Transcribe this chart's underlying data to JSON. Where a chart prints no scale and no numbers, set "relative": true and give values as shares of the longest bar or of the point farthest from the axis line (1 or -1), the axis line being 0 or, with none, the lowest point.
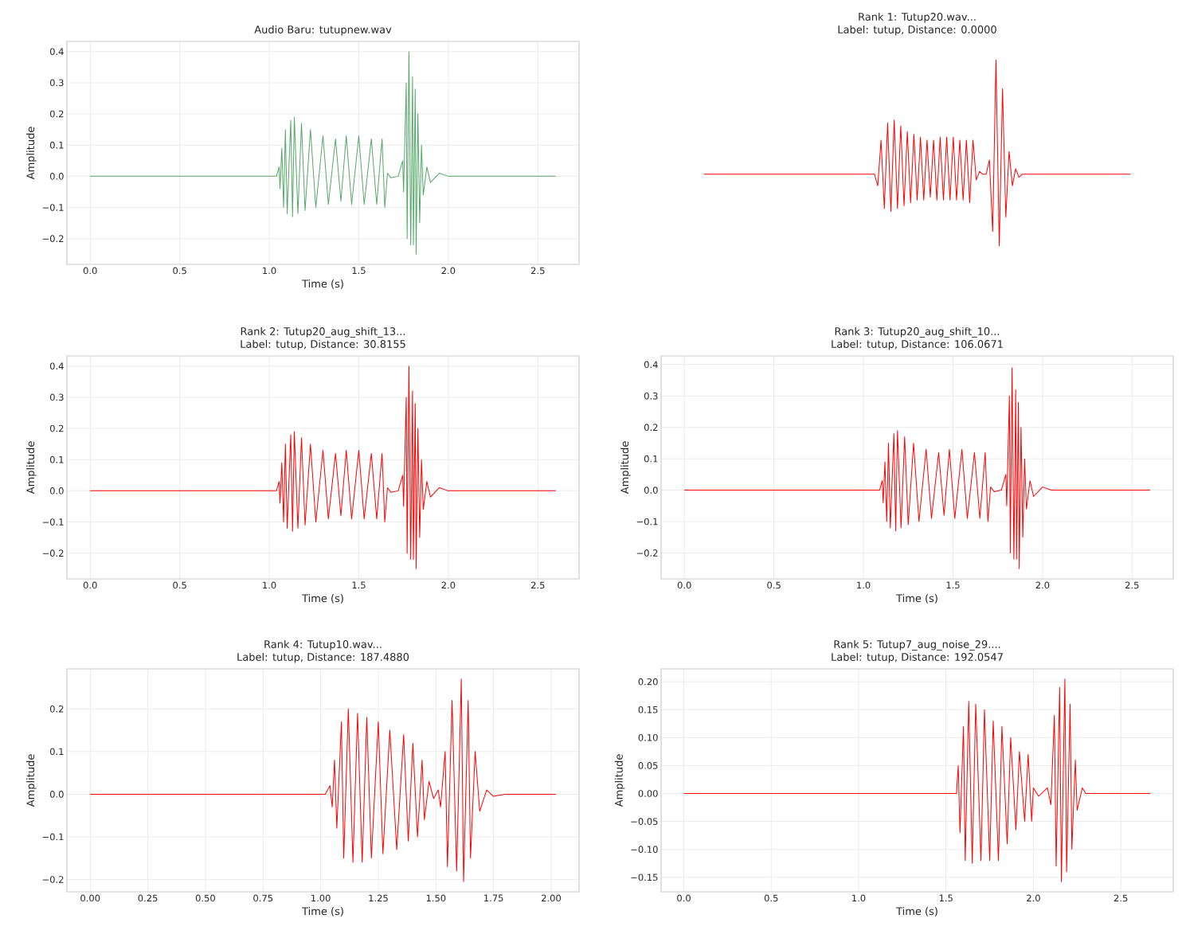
{
  "chart_data": [
    {
      "type": "line",
      "title": "Audio Baru: tutupnew.wav",
      "xlabel": "Time (s)",
      "ylabel": "Amplitude",
      "grid": true,
      "xlim": [
        -0.13,
        2.73
      ],
      "ylim": [
        -0.2825,
        0.4325
      ],
      "xticks": [
        {
          "value": 0,
          "label": "0.0"
        },
        0.5,
        {
          "value": 1,
          "label": "1.0"
        },
        1.5,
        {
          "value": 2,
          "label": "2.0"
        },
        2.5
      ],
      "yticks": [
        {
          "value": -0.2,
          "label": "−0.2"
        },
        {
          "value": -0.1,
          "label": "−0.1"
        },
        {
          "value": 0,
          "label": "0.0"
        },
        0.1,
        0.2,
        0.3,
        0.4
      ],
      "series": [
        {
          "color": "#55a868",
          "x": [
            0,
            1.04,
            1.055,
            1.06,
            1.07,
            1.08,
            1.09,
            1.1,
            1.12,
            1.13,
            1.14,
            1.16,
            1.18,
            1.2,
            1.23,
            1.26,
            1.3,
            1.33,
            1.37,
            1.4,
            1.43,
            1.46,
            1.5,
            1.53,
            1.57,
            1.6,
            1.63,
            1.645,
            1.66,
            1.68,
            1.72,
            1.745,
            1.75,
            1.765,
            1.77,
            1.78,
            1.79,
            1.8,
            1.805,
            1.815,
            1.82,
            1.83,
            1.84,
            1.85,
            1.86,
            1.88,
            1.9,
            1.95,
            2.0,
            2.6
          ],
          "values": [
            0,
            0,
            0.03,
            -0.04,
            0.09,
            -0.1,
            0.15,
            -0.12,
            0.18,
            -0.13,
            0.19,
            -0.12,
            0.17,
            -0.11,
            0.15,
            -0.1,
            0.13,
            -0.09,
            0.12,
            -0.08,
            0.13,
            -0.09,
            0.13,
            -0.09,
            0.12,
            -0.09,
            0.12,
            -0.1,
            0.01,
            -0.005,
            0,
            0.05,
            -0.05,
            0.3,
            -0.2,
            0.4,
            -0.22,
            0.32,
            -0.22,
            0.28,
            -0.25,
            0.2,
            -0.15,
            0.1,
            -0.06,
            0.03,
            -0.02,
            0.01,
            0,
            0
          ]
        }
      ]
    },
    {
      "type": "line",
      "title": "Rank 1: Tutup20.wav...",
      "subtitle": "Label: tutup, Distance: 0.0000",
      "relative": true,
      "categories": [
        null,
        null,
        null,
        null,
        null,
        null,
        null,
        null,
        null,
        null,
        null,
        null,
        null,
        null,
        null,
        null,
        null,
        null,
        null,
        null,
        null,
        null,
        null,
        null,
        null,
        null,
        null,
        null,
        null,
        null,
        null,
        null,
        null,
        null,
        null,
        null,
        null,
        null,
        null,
        null,
        null,
        null,
        null,
        null,
        null,
        null,
        null,
        null,
        null,
        null,
        null,
        null,
        null,
        null,
        null,
        null,
        null,
        null,
        null,
        null,
        null,
        null,
        null,
        null,
        null,
        null,
        null,
        null,
        null,
        null,
        null,
        null,
        null,
        null,
        null,
        null,
        null,
        null,
        null,
        null,
        null,
        null,
        null,
        null,
        null,
        null,
        null,
        null,
        null,
        null,
        null,
        null,
        null,
        null,
        null,
        null,
        null,
        null,
        null,
        null,
        null,
        null,
        null,
        null,
        null,
        null,
        null,
        null,
        null,
        null,
        null,
        null,
        null,
        null,
        null,
        null,
        null,
        null,
        null,
        null,
        null,
        null,
        null,
        null,
        null,
        null,
        null,
        null,
        null,
        null,
        null
      ],
      "series": [
        {
          "color": "#ff0000",
          "values": [
            0.385,
            0.385,
            0.385,
            0.385,
            0.385,
            0.385,
            0.385,
            0.385,
            0.385,
            0.385,
            0.385,
            0.385,
            0.385,
            0.385,
            0.385,
            0.385,
            0.385,
            0.385,
            0.385,
            0.385,
            0.385,
            0.385,
            0.385,
            0.385,
            0.385,
            0.385,
            0.385,
            0.385,
            0.385,
            0.385,
            0.385,
            0.385,
            0.385,
            0.385,
            0.385,
            0.385,
            0.385,
            0.385,
            0.385,
            0.385,
            0.385,
            0.385,
            0.385,
            0.385,
            0.385,
            0.385,
            0.385,
            0.385,
            0.385,
            0.385,
            0.385,
            0.385,
            0.385,
            0.323,
            0.569,
            0.2,
            0.662,
            0.185,
            0.677,
            0.2,
            0.646,
            0.215,
            0.615,
            0.231,
            0.6,
            0.246,
            0.585,
            0.246,
            0.569,
            0.262,
            0.569,
            0.246,
            0.585,
            0.246,
            0.585,
            0.246,
            0.585,
            0.246,
            0.569,
            0.246,
            0.569,
            0.231,
            0.569,
            0.354,
            0.4,
            0.385,
            0.385,
            0.462,
            0.077,
            1,
            0,
            0.846,
            0.154,
            0.508,
            0.323,
            0.415,
            0.369,
            0.385,
            0.385,
            0.385,
            0.385,
            0.385,
            0.385,
            0.385,
            0.385,
            0.385,
            0.385,
            0.385,
            0.385,
            0.385,
            0.385,
            0.385,
            0.385,
            0.385,
            0.385,
            0.385,
            0.385,
            0.385,
            0.385,
            0.385,
            0.385,
            0.385,
            0.385,
            0.385,
            0.385,
            0.385,
            0.385,
            0.385,
            0.385,
            0.385,
            0.385
          ]
        }
      ]
    },
    {
      "type": "line",
      "title": "Rank 2: Tutup20_aug_shift_13...",
      "subtitle": "Label: tutup, Distance: 30.8155",
      "xlabel": "Time (s)",
      "ylabel": "Amplitude",
      "grid": true,
      "xlim": [
        -0.13,
        2.73
      ],
      "ylim": [
        -0.2825,
        0.4325
      ],
      "xticks": [
        {
          "value": 0,
          "label": "0.0"
        },
        0.5,
        {
          "value": 1,
          "label": "1.0"
        },
        1.5,
        {
          "value": 2,
          "label": "2.0"
        },
        2.5
      ],
      "yticks": [
        {
          "value": -0.2,
          "label": "−0.2"
        },
        {
          "value": -0.1,
          "label": "−0.1"
        },
        {
          "value": 0,
          "label": "0.0"
        },
        0.1,
        0.2,
        0.3,
        0.4
      ],
      "series": [
        {
          "color": "#ff0000",
          "x": [
            0,
            1.04,
            1.055,
            1.06,
            1.07,
            1.08,
            1.09,
            1.1,
            1.12,
            1.13,
            1.14,
            1.16,
            1.18,
            1.2,
            1.23,
            1.26,
            1.3,
            1.33,
            1.37,
            1.4,
            1.43,
            1.46,
            1.5,
            1.53,
            1.57,
            1.6,
            1.63,
            1.645,
            1.66,
            1.68,
            1.72,
            1.745,
            1.75,
            1.765,
            1.77,
            1.78,
            1.79,
            1.8,
            1.805,
            1.815,
            1.82,
            1.83,
            1.84,
            1.85,
            1.86,
            1.88,
            1.9,
            1.95,
            2.0,
            2.6
          ],
          "values": [
            0,
            0,
            0.03,
            -0.04,
            0.09,
            -0.1,
            0.15,
            -0.12,
            0.18,
            -0.13,
            0.19,
            -0.12,
            0.17,
            -0.11,
            0.15,
            -0.1,
            0.13,
            -0.09,
            0.12,
            -0.08,
            0.13,
            -0.09,
            0.13,
            -0.09,
            0.12,
            -0.09,
            0.12,
            -0.1,
            0.01,
            -0.005,
            0,
            0.05,
            -0.05,
            0.3,
            -0.2,
            0.4,
            -0.22,
            0.32,
            -0.22,
            0.28,
            -0.25,
            0.2,
            -0.15,
            0.1,
            -0.06,
            0.03,
            -0.02,
            0.01,
            0,
            0
          ]
        }
      ]
    },
    {
      "type": "line",
      "title": "Rank 3: Tutup20_aug_shift_10...",
      "subtitle": "Label: tutup, Distance: 106.0671",
      "xlabel": "Time (s)",
      "ylabel": "Amplitude",
      "grid": true,
      "xlim": [
        -0.13,
        2.73
      ],
      "ylim": [
        -0.2825,
        0.4275
      ],
      "xticks": [
        {
          "value": 0,
          "label": "0.0"
        },
        0.5,
        {
          "value": 1,
          "label": "1.0"
        },
        1.5,
        {
          "value": 2,
          "label": "2.0"
        },
        2.5
      ],
      "yticks": [
        {
          "value": -0.2,
          "label": "−0.2"
        },
        {
          "value": -0.1,
          "label": "−0.1"
        },
        {
          "value": 0,
          "label": "0.0"
        },
        0.1,
        0.2,
        0.3,
        0.4
      ],
      "series": [
        {
          "color": "#ff0000",
          "x": [
            0,
            1.09,
            1.105,
            1.11,
            1.12,
            1.13,
            1.14,
            1.15,
            1.17,
            1.18,
            1.19,
            1.21,
            1.23,
            1.25,
            1.28,
            1.31,
            1.35,
            1.38,
            1.42,
            1.45,
            1.48,
            1.51,
            1.55,
            1.58,
            1.62,
            1.65,
            1.68,
            1.695,
            1.71,
            1.73,
            1.77,
            1.795,
            1.8,
            1.815,
            1.82,
            1.83,
            1.84,
            1.85,
            1.855,
            1.865,
            1.87,
            1.88,
            1.89,
            1.9,
            1.91,
            1.93,
            1.95,
            2.0,
            2.05,
            2.6
          ],
          "values": [
            0,
            0,
            0.03,
            -0.04,
            0.09,
            -0.1,
            0.15,
            -0.12,
            0.18,
            -0.13,
            0.19,
            -0.12,
            0.17,
            -0.11,
            0.15,
            -0.1,
            0.13,
            -0.09,
            0.12,
            -0.08,
            0.13,
            -0.09,
            0.13,
            -0.09,
            0.12,
            -0.09,
            0.12,
            -0.1,
            0.01,
            -0.005,
            0,
            0.05,
            -0.05,
            0.3,
            -0.2,
            0.39,
            -0.22,
            0.32,
            -0.22,
            0.28,
            -0.25,
            0.2,
            -0.15,
            0.1,
            -0.06,
            0.03,
            -0.02,
            0.01,
            0,
            0
          ]
        }
      ]
    },
    {
      "type": "line",
      "title": "Rank 4: Tutup10.wav...",
      "subtitle": "Label: tutup, Distance: 187.4880",
      "xlabel": "Time (s)",
      "ylabel": "Amplitude",
      "grid": true,
      "xlim": [
        -0.101,
        2.121
      ],
      "ylim": [
        -0.229,
        0.294
      ],
      "xticks": [
        {
          "value": 0,
          "label": "0.00"
        },
        0.25,
        {
          "value": 0.5,
          "label": "0.50"
        },
        0.75,
        {
          "value": 1,
          "label": "1.00"
        },
        1.25,
        {
          "value": 1.5,
          "label": "1.50"
        },
        1.75,
        {
          "value": 2,
          "label": "2.00"
        }
      ],
      "yticks": [
        {
          "value": -0.2,
          "label": "−0.2"
        },
        {
          "value": -0.1,
          "label": "−0.1"
        },
        {
          "value": 0,
          "label": "0.0"
        },
        0.1,
        0.2
      ],
      "series": [
        {
          "color": "#ff0000",
          "x": [
            0,
            1.02,
            1.04,
            1.05,
            1.06,
            1.07,
            1.09,
            1.1,
            1.12,
            1.14,
            1.16,
            1.18,
            1.2,
            1.22,
            1.25,
            1.27,
            1.3,
            1.33,
            1.36,
            1.38,
            1.4,
            1.42,
            1.44,
            1.45,
            1.47,
            1.49,
            1.51,
            1.52,
            1.54,
            1.55,
            1.57,
            1.59,
            1.61,
            1.62,
            1.64,
            1.65,
            1.67,
            1.69,
            1.72,
            1.75,
            1.8,
            2.02
          ],
          "values": [
            0,
            0,
            0.02,
            -0.03,
            0.08,
            -0.08,
            0.17,
            -0.15,
            0.2,
            -0.16,
            0.19,
            -0.16,
            0.18,
            -0.15,
            0.17,
            -0.14,
            0.15,
            -0.13,
            0.14,
            -0.11,
            0.12,
            -0.1,
            0.08,
            -0.06,
            0.03,
            -0.01,
            0.01,
            -0.03,
            0.1,
            -0.17,
            0.22,
            -0.18,
            0.27,
            -0.205,
            0.22,
            -0.15,
            0.1,
            -0.04,
            0.01,
            -0.005,
            0,
            0
          ]
        }
      ]
    },
    {
      "type": "line",
      "title": "Rank 5: Tutup7_aug_noise_29....",
      "subtitle": "Label: tutup, Distance: 192.0547",
      "xlabel": "Time (s)",
      "ylabel": "Amplitude",
      "grid": true,
      "xlim": [
        -0.13,
        2.8
      ],
      "ylim": [
        -0.176,
        0.223
      ],
      "xticks": [
        {
          "value": 0,
          "label": "0.0"
        },
        0.5,
        {
          "value": 1,
          "label": "1.0"
        },
        1.5,
        {
          "value": 2,
          "label": "2.0"
        },
        2.5
      ],
      "yticks": [
        {
          "value": -0.15,
          "label": "−0.15"
        },
        {
          "value": -0.1,
          "label": "−0.10"
        },
        {
          "value": -0.05,
          "label": "−0.05"
        },
        {
          "value": 0,
          "label": "0.00"
        },
        0.05,
        {
          "value": 0.1,
          "label": "0.10"
        },
        0.15,
        {
          "value": 0.2,
          "label": "0.20"
        }
      ],
      "series": [
        {
          "color": "#ff0000",
          "x": [
            0,
            1.56,
            1.57,
            1.58,
            1.6,
            1.61,
            1.63,
            1.65,
            1.67,
            1.7,
            1.72,
            1.75,
            1.77,
            1.8,
            1.82,
            1.85,
            1.87,
            1.9,
            1.92,
            1.95,
            1.97,
            1.99,
            2.0,
            2.03,
            2.08,
            2.1,
            2.12,
            2.13,
            2.15,
            2.16,
            2.18,
            2.19,
            2.21,
            2.22,
            2.24,
            2.25,
            2.28,
            2.3,
            2.67
          ],
          "values": [
            0,
            0,
            0.05,
            -0.07,
            0.12,
            -0.12,
            0.165,
            -0.125,
            0.16,
            -0.12,
            0.15,
            -0.12,
            0.13,
            -0.12,
            0.12,
            -0.09,
            0.1,
            -0.065,
            0.075,
            -0.05,
            0.07,
            -0.05,
            0.01,
            -0.005,
            0.01,
            -0.02,
            0.14,
            -0.13,
            0.19,
            -0.158,
            0.205,
            -0.14,
            0.16,
            -0.1,
            0.06,
            -0.03,
            0.01,
            0,
            0
          ]
        }
      ]
    }
  ]
}
